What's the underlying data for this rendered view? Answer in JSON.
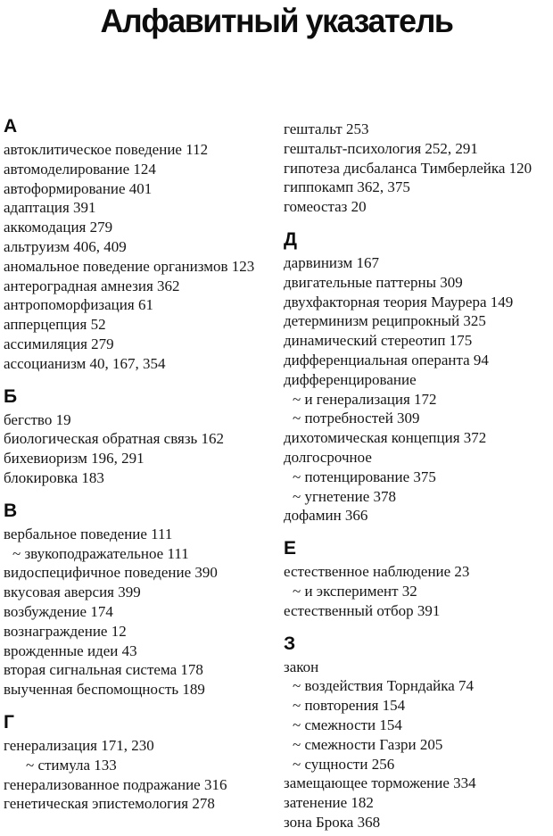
{
  "title": "Алфавитный указатель",
  "page": {
    "columns": [
      {
        "side": "left",
        "sections": [
          {
            "letter": "А",
            "entries": [
              {
                "text": "автоклитическое поведение 112",
                "indent": 0
              },
              {
                "text": "автомоделирование 124",
                "indent": 0
              },
              {
                "text": "автоформирование 401",
                "indent": 0
              },
              {
                "text": "адаптация 391",
                "indent": 0
              },
              {
                "text": "аккомодация 279",
                "indent": 0
              },
              {
                "text": "альтруизм 406, 409",
                "indent": 0
              },
              {
                "text": "аномальное поведение организмов 123",
                "indent": 0
              },
              {
                "text": "антероградная амнезия 362",
                "indent": 0
              },
              {
                "text": "антропоморфизация 61",
                "indent": 0
              },
              {
                "text": "апперцепция 52",
                "indent": 0
              },
              {
                "text": "ассимиляция 279",
                "indent": 0
              },
              {
                "text": "ассоцианизм 40, 167, 354",
                "indent": 0
              }
            ]
          },
          {
            "letter": "Б",
            "entries": [
              {
                "text": "бегство 19",
                "indent": 0
              },
              {
                "text": "биологическая обратная связь 162",
                "indent": 0
              },
              {
                "text": "бихевиоризм 196, 291",
                "indent": 0
              },
              {
                "text": "блокировка 183",
                "indent": 0
              }
            ]
          },
          {
            "letter": "В",
            "entries": [
              {
                "text": "вербальное поведение 111",
                "indent": 0
              },
              {
                "text": "~ звукоподражательное 111",
                "indent": 1
              },
              {
                "text": "видоспецифичное поведение 390",
                "indent": 0
              },
              {
                "text": "вкусовая аверсия 399",
                "indent": 0
              },
              {
                "text": "возбуждение 174",
                "indent": 0
              },
              {
                "text": "вознаграждение 12",
                "indent": 0
              },
              {
                "text": "врожденные идеи 43",
                "indent": 0
              },
              {
                "text": "вторая сигнальная система 178",
                "indent": 0
              },
              {
                "text": "выученная беспомощность 189",
                "indent": 0
              }
            ]
          },
          {
            "letter": "Г",
            "entries": [
              {
                "text": "генерализация 171, 230",
                "indent": 0
              },
              {
                "text": "~ стимула 133",
                "indent": 2
              },
              {
                "text": "генерализованное подражание 316",
                "indent": 0
              },
              {
                "text": "генетическая эпистемология 278",
                "indent": 0
              }
            ]
          }
        ]
      },
      {
        "side": "right",
        "sections": [
          {
            "letter": "",
            "entries": [
              {
                "text": "гештальт 253",
                "indent": 0
              },
              {
                "text": "гештальт-психология 252, 291",
                "indent": 0
              },
              {
                "text": "гипотеза дисбаланса Тимберлейка 120",
                "indent": 0
              },
              {
                "text": "гиппокамп 362, 375",
                "indent": 0
              },
              {
                "text": "гомеостаз 20",
                "indent": 0
              }
            ]
          },
          {
            "letter": "Д",
            "entries": [
              {
                "text": "дарвинизм 167",
                "indent": 0
              },
              {
                "text": "двигательные паттерны 309",
                "indent": 0
              },
              {
                "text": "двухфакторная теория Маурера 149",
                "indent": 0
              },
              {
                "text": "детерминизм реципрокный 325",
                "indent": 0
              },
              {
                "text": "динамический стереотип 175",
                "indent": 0
              },
              {
                "text": "дифференциальная операнта 94",
                "indent": 0
              },
              {
                "text": "дифференцирование",
                "indent": 0
              },
              {
                "text": "~ и генерализация 172",
                "indent": 1
              },
              {
                "text": "~ потребностей 309",
                "indent": 1
              },
              {
                "text": "дихотомическая концепция 372",
                "indent": 0
              },
              {
                "text": "долгосрочное",
                "indent": 0
              },
              {
                "text": "~ потенцирование 375",
                "indent": 1
              },
              {
                "text": "~ угнетение 378",
                "indent": 1
              },
              {
                "text": "дофамин 366",
                "indent": 0
              }
            ]
          },
          {
            "letter": "Е",
            "entries": [
              {
                "text": "естественное наблюдение 23",
                "indent": 0
              },
              {
                "text": "~ и эксперимент 32",
                "indent": 1
              },
              {
                "text": "естественный отбор 391",
                "indent": 0
              }
            ]
          },
          {
            "letter": "З",
            "entries": [
              {
                "text": "закон",
                "indent": 0
              },
              {
                "text": "~ воздействия Торндайка 74",
                "indent": 1
              },
              {
                "text": "~ повторения 154",
                "indent": 1
              },
              {
                "text": "~ смежности 154",
                "indent": 1
              },
              {
                "text": "~ смежности Газри 205",
                "indent": 1
              },
              {
                "text": "~ сущности 256",
                "indent": 1
              },
              {
                "text": "замещающее торможение 334",
                "indent": 0
              },
              {
                "text": "затенение 182",
                "indent": 0
              },
              {
                "text": "зона Брока 368",
                "indent": 0
              }
            ]
          }
        ]
      }
    ]
  }
}
